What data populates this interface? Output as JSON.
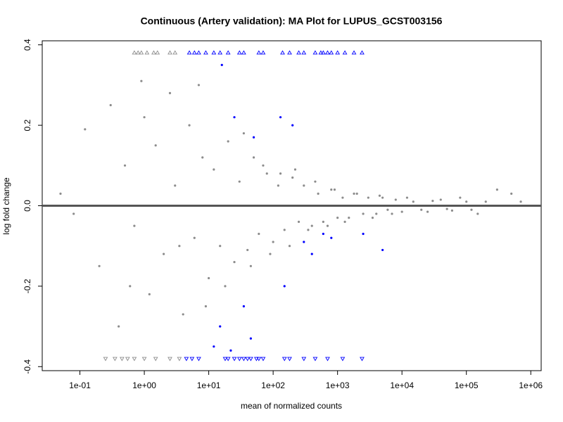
{
  "chart_data": {
    "type": "scatter",
    "title": "Continuous (Artery validation): MA Plot for LUPUS_GCST003156",
    "x_label": "mean of normalized counts",
    "y_label": "log fold change",
    "xlog": true,
    "xlim": [
      0.026,
      1450000
    ],
    "ylim": [
      -0.41,
      0.41
    ],
    "xticks": [
      {
        "value": 0.1,
        "label": "1e-01"
      },
      {
        "value": 1,
        "label": "1e+00"
      },
      {
        "value": 10,
        "label": "1e+01"
      },
      {
        "value": 100,
        "label": "1e+02"
      },
      {
        "value": 1000,
        "label": "1e+03"
      },
      {
        "value": 10000,
        "label": "1e+04"
      },
      {
        "value": 100000,
        "label": "1e+05"
      },
      {
        "value": 1000000,
        "label": "1e+06"
      }
    ],
    "yticks": [
      -0.4,
      -0.2,
      {
        "value": 0,
        "label": "0.0"
      },
      0.2,
      0.4
    ],
    "hline": {
      "value": 0,
      "color": "#555555"
    },
    "series": [
      {
        "color": "#8c8c8c",
        "marker": "circle",
        "x": [
          0.05,
          0.08,
          0.12,
          0.2,
          0.3,
          0.4,
          0.5,
          0.7,
          0.9,
          1.2,
          1.5,
          2,
          2.5,
          3,
          4,
          5,
          6,
          8,
          10,
          12,
          15,
          20,
          25,
          30,
          40,
          50,
          60,
          80,
          100,
          120,
          150,
          200,
          250,
          300,
          400,
          500,
          600,
          800,
          1000,
          1200,
          1500,
          2000,
          2500,
          3000,
          4000,
          5000,
          6000,
          8000,
          10000,
          15000,
          20000,
          30000,
          50000,
          80000,
          120000,
          200000,
          500000,
          0.6,
          1,
          3.5,
          7,
          9,
          18,
          35,
          45,
          70,
          90,
          130,
          180,
          220,
          350,
          450,
          700,
          900,
          1300,
          1800,
          3500,
          4500,
          7000,
          12000,
          25000,
          40000,
          60000,
          100000,
          150000,
          300000,
          700000
        ],
        "values": [
          0.03,
          -0.02,
          0.19,
          -0.15,
          0.25,
          -0.3,
          0.1,
          -0.05,
          0.31,
          -0.22,
          0.15,
          -0.12,
          0.28,
          0.05,
          -0.27,
          0.2,
          -0.08,
          0.12,
          -0.18,
          0.09,
          -0.1,
          0.16,
          -0.14,
          0.06,
          -0.11,
          0.12,
          -0.07,
          0.08,
          -0.09,
          0.05,
          -0.06,
          0.07,
          -0.04,
          0.05,
          -0.05,
          0.03,
          -0.04,
          0.04,
          -0.03,
          0.02,
          -0.03,
          0.03,
          -0.02,
          0.02,
          -0.02,
          0.02,
          -0.01,
          0.015,
          -0.015,
          0.01,
          -0.01,
          0.012,
          -0.008,
          0.02,
          -0.01,
          0.01,
          0.03,
          -0.2,
          0.22,
          -0.1,
          0.3,
          -0.25,
          -0.2,
          0.18,
          -0.15,
          0.1,
          -0.12,
          0.08,
          -0.1,
          0.09,
          -0.06,
          0.06,
          -0.05,
          0.04,
          -0.04,
          0.03,
          -0.03,
          0.025,
          -0.02,
          0.02,
          -0.015,
          0.015,
          -0.012,
          0.01,
          -0.02,
          0.04,
          0.01
        ]
      },
      {
        "color": "#0000ff",
        "marker": "circle",
        "x": [
          25,
          130,
          200,
          50,
          300,
          400,
          600,
          800,
          2500,
          5000,
          15,
          35,
          45,
          150,
          22,
          12,
          16
        ],
        "values": [
          0.22,
          0.22,
          0.2,
          0.17,
          -0.09,
          -0.12,
          -0.07,
          -0.08,
          -0.07,
          -0.11,
          -0.3,
          -0.25,
          -0.33,
          -0.2,
          -0.36,
          -0.35,
          0.35
        ]
      },
      {
        "color": "#8c8c8c",
        "marker": "triangle-up",
        "x": [
          0.7,
          0.8,
          0.9,
          1.1,
          1.4,
          1.6,
          2.5,
          3
        ],
        "values": [
          0.38,
          0.38,
          0.38,
          0.38,
          0.38,
          0.38,
          0.38,
          0.38
        ]
      },
      {
        "color": "#0000ff",
        "marker": "triangle-up",
        "x": [
          5,
          6,
          7,
          9,
          12,
          15,
          20,
          30,
          35,
          60,
          70,
          140,
          180,
          250,
          300,
          450,
          550,
          600,
          700,
          800,
          1000,
          1300,
          1800,
          2400
        ],
        "values": [
          0.38,
          0.38,
          0.38,
          0.38,
          0.38,
          0.38,
          0.38,
          0.38,
          0.38,
          0.38,
          0.38,
          0.38,
          0.38,
          0.38,
          0.38,
          0.38,
          0.38,
          0.38,
          0.38,
          0.38,
          0.38,
          0.38,
          0.38,
          0.38
        ]
      },
      {
        "color": "#8c8c8c",
        "marker": "triangle-down",
        "x": [
          0.25,
          0.35,
          0.45,
          0.55,
          0.7,
          1,
          1.5,
          2.5,
          3.5
        ],
        "values": [
          -0.38,
          -0.38,
          -0.38,
          -0.38,
          -0.38,
          -0.38,
          -0.38,
          -0.38,
          -0.38
        ]
      },
      {
        "color": "#0000ff",
        "marker": "triangle-down",
        "x": [
          4.5,
          5.5,
          7,
          18,
          20,
          25,
          30,
          35,
          40,
          45,
          55,
          60,
          70,
          150,
          180,
          300,
          450,
          700,
          1200,
          2400
        ],
        "values": [
          -0.38,
          -0.38,
          -0.38,
          -0.38,
          -0.38,
          -0.38,
          -0.38,
          -0.38,
          -0.38,
          -0.38,
          -0.38,
          -0.38,
          -0.38,
          -0.38,
          -0.38,
          -0.38,
          -0.38,
          -0.38,
          -0.38,
          -0.38
        ]
      }
    ]
  }
}
